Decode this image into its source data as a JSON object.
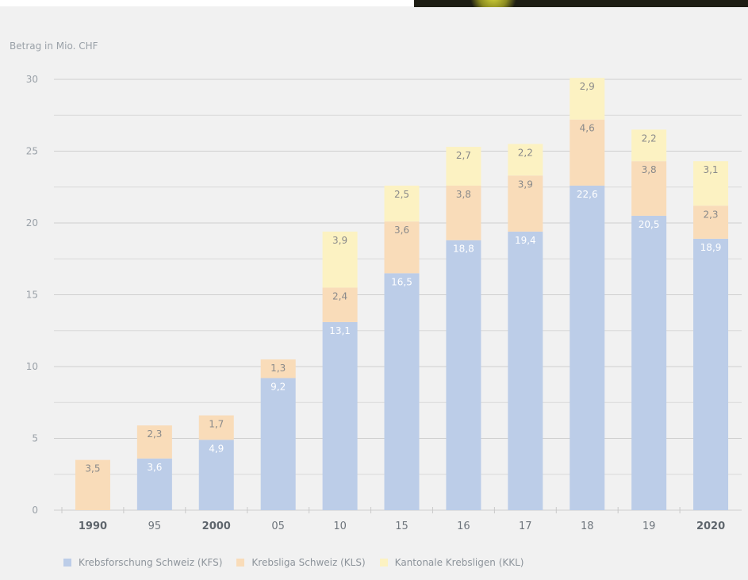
{
  "chart_data": {
    "type": "bar",
    "stacked": true,
    "ylabel": "Betrag in Mio. CHF",
    "ylim": [
      0,
      30
    ],
    "yticks": [
      0,
      5,
      10,
      15,
      20,
      25,
      30
    ],
    "categories": [
      "1990",
      "95",
      "2000",
      "05",
      "10",
      "15",
      "16",
      "17",
      "18",
      "19",
      "2020"
    ],
    "bold_categories": [
      "1990",
      "2000",
      "2020"
    ],
    "series": [
      {
        "name": "Krebsforschung Schweiz (KFS)",
        "color": "#bccde8",
        "values": [
          null,
          3.6,
          4.9,
          9.2,
          13.1,
          16.5,
          18.8,
          19.4,
          22.6,
          20.5,
          18.9
        ],
        "labels": [
          "",
          "3,6",
          "4,9",
          "9,2",
          "13,1",
          "16,5",
          "18,8",
          "19,4",
          "22,6",
          "20,5",
          "18,9"
        ]
      },
      {
        "name": "Krebsliga Schweiz (KLS)",
        "color": "#f9dcb9",
        "values": [
          3.5,
          2.3,
          1.7,
          1.3,
          2.4,
          3.6,
          3.8,
          3.9,
          4.6,
          3.8,
          2.3
        ],
        "labels": [
          "3,5",
          "2,3",
          "1,7",
          "1,3",
          "2,4",
          "3,6",
          "3,8",
          "3,9",
          "4,6",
          "3,8",
          "2,3"
        ]
      },
      {
        "name": "Kantonale Krebsligen (KKL)",
        "color": "#fcf2c2",
        "values": [
          null,
          null,
          null,
          null,
          3.9,
          2.5,
          2.7,
          2.2,
          2.9,
          2.2,
          3.1
        ],
        "labels": [
          "",
          "",
          "",
          "",
          "3,9",
          "2,5",
          "2,7",
          "2,2",
          "2,9",
          "2,2",
          "3,1"
        ]
      }
    ],
    "grid": true,
    "legend_position": "bottom"
  }
}
